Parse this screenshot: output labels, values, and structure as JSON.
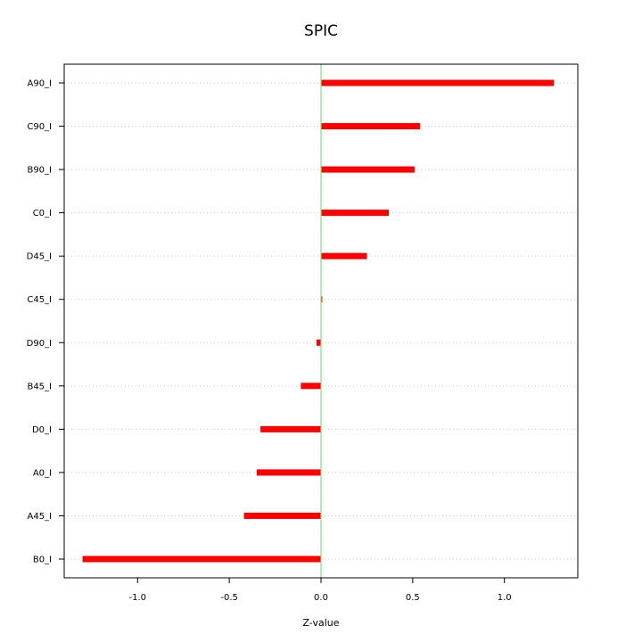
{
  "chart_data": {
    "type": "bar",
    "orientation": "horizontal",
    "title": "SPIC",
    "xlabel": "Z-value",
    "ylabel": "",
    "categories": [
      "A90_I",
      "C90_I",
      "B90_I",
      "C0_I",
      "D45_I",
      "C45_I",
      "D90_I",
      "B45_I",
      "D0_I",
      "A0_I",
      "A45_I",
      "B0_I"
    ],
    "values": [
      1.27,
      0.54,
      0.51,
      0.37,
      0.25,
      0.005,
      -0.025,
      -0.11,
      -0.33,
      -0.35,
      -0.42,
      -1.3
    ],
    "xlim": [
      -1.4,
      1.4
    ],
    "xticks": [
      -1.0,
      -0.5,
      0.0,
      0.5,
      1.0
    ],
    "xtick_labels": [
      "-1.0",
      "-0.5",
      "0.0",
      "0.5",
      "1.0"
    ],
    "reference_line_x": 0,
    "grid": "horizontal dotted",
    "bar_color": "#ff0000",
    "reference_line_color": "#7fe07f",
    "grid_color": "#c8c8c8"
  }
}
